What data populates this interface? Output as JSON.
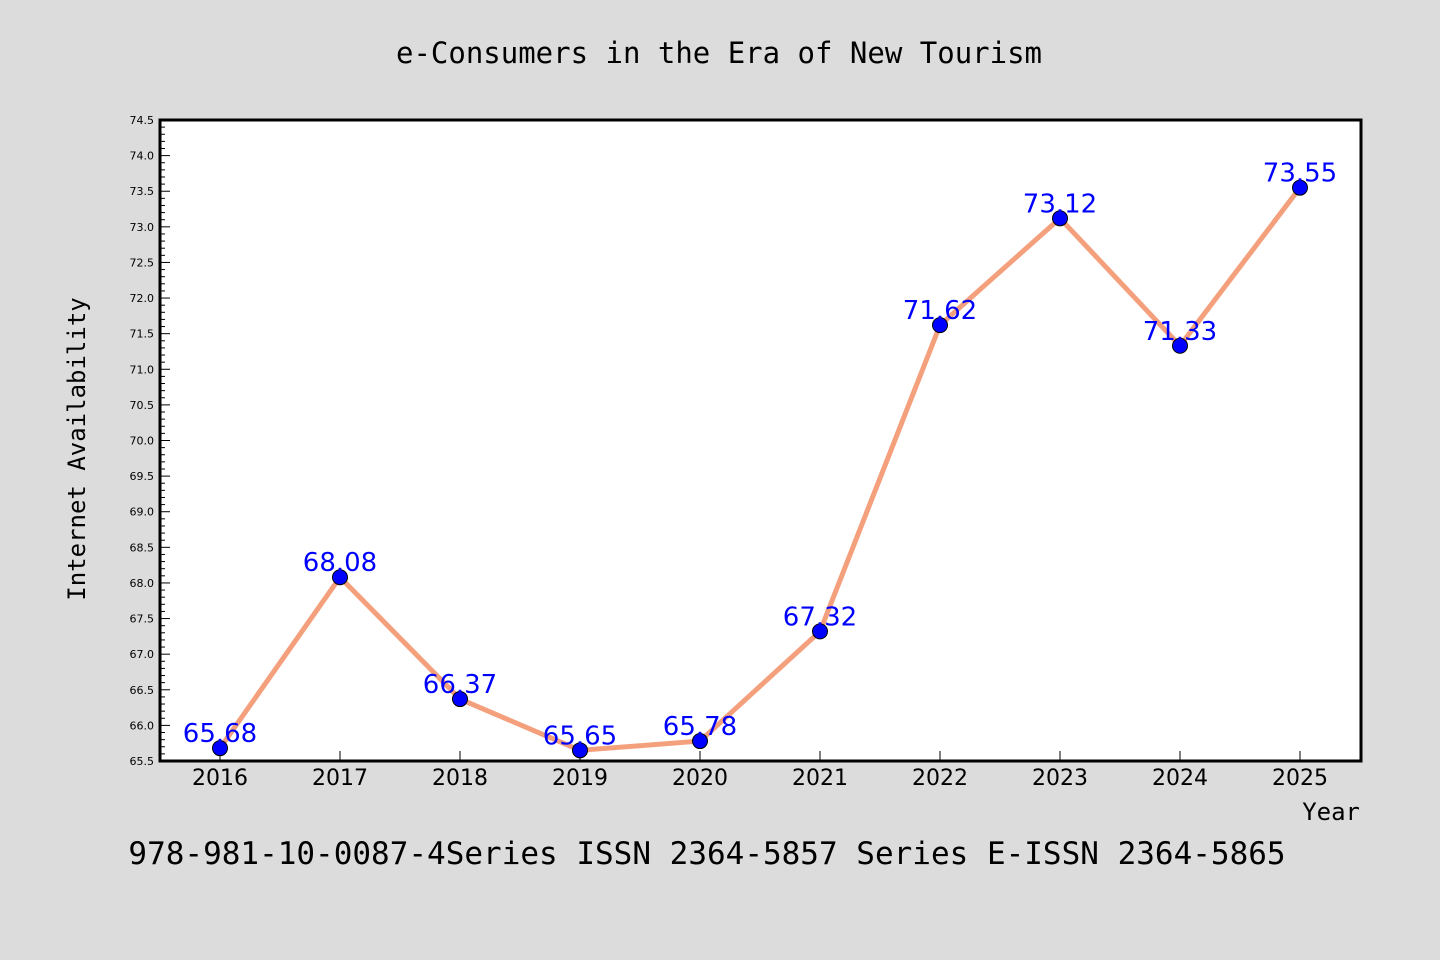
{
  "chart_data": {
    "type": "line",
    "title": "e-Consumers in the Era of New Tourism",
    "xlabel": "Year",
    "ylabel": "Internet Availability",
    "categories": [
      "2016",
      "2017",
      "2018",
      "2019",
      "2020",
      "2021",
      "2022",
      "2023",
      "2024",
      "2025"
    ],
    "series": [
      {
        "values": [
          65.68,
          68.08,
          66.37,
          65.65,
          65.78,
          67.32,
          71.62,
          73.12,
          71.33,
          73.55
        ],
        "labels": [
          "65.68",
          "68.08",
          "66.37",
          "65.65",
          "65.78",
          "67.32",
          "71.62",
          "73.12",
          "71.33",
          "73.55"
        ]
      }
    ],
    "ylim": [
      65.5,
      74.5
    ],
    "yticks": [
      "65.5",
      "66.0",
      "66.5",
      "67.0",
      "67.5",
      "68.0",
      "68.5",
      "69.0",
      "69.5",
      "70.0",
      "70.5",
      "71.0",
      "71.5",
      "72.0",
      "72.5",
      "73.0",
      "73.5",
      "74.0",
      "74.5"
    ],
    "grid": false,
    "line_color": "#f4a07c",
    "marker_color": "#0000ff",
    "label_color": "#0000ff"
  },
  "footer": {
    "text": "978-981-10-0087-4Series ISSN 2364-5857 Series E-ISSN 2364-5865"
  }
}
